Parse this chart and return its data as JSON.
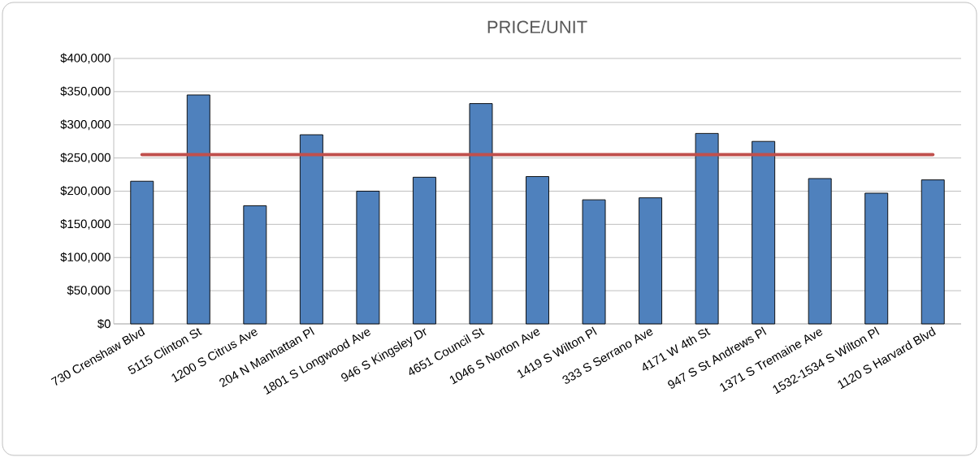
{
  "chart_data": {
    "type": "bar",
    "title": "PRICE/UNIT",
    "categories": [
      "730 Crenshaw Blvd",
      "5115 Clinton St",
      "1200 S Citrus Ave",
      "204 N Manhattan Pl",
      "1801 S Longwood Ave",
      "946 S Kingsley Dr",
      "4651 Council St",
      "1046 S Norton Ave",
      "1419 S Wilton Pl",
      "333 S Serrano Ave",
      "4171 W 4th St",
      "947 S St Andrews Pl",
      "1371 S Tremaine Ave",
      "1532-1534 S Wilton Pl",
      "1120 S Harvard Blvd"
    ],
    "series": [
      {
        "color": "#4f81bd",
        "values": [
          215000,
          345000,
          178000,
          285000,
          200000,
          221000,
          332000,
          222000,
          187000,
          190000,
          287000,
          275000,
          219000,
          197000,
          217000
        ]
      },
      {
        "type": "line",
        "color": "#c0504d",
        "values": [
          255000,
          255000,
          255000,
          255000,
          255000,
          255000,
          255000,
          255000,
          255000,
          255000,
          255000,
          255000,
          255000,
          255000,
          255000
        ]
      }
    ],
    "ylim": [
      0,
      400000
    ],
    "yticks": [
      {
        "value": 0,
        "label": "$0"
      },
      {
        "value": 50000,
        "label": "$50,000"
      },
      {
        "value": 100000,
        "label": "$100,000"
      },
      {
        "value": 150000,
        "label": "$150,000"
      },
      {
        "value": 200000,
        "label": "$200,000"
      },
      {
        "value": 250000,
        "label": "$250,000"
      },
      {
        "value": 300000,
        "label": "$300,000"
      },
      {
        "value": 350000,
        "label": "$350,000"
      },
      {
        "value": 400000,
        "label": "$400,000"
      }
    ],
    "grid": "y"
  }
}
